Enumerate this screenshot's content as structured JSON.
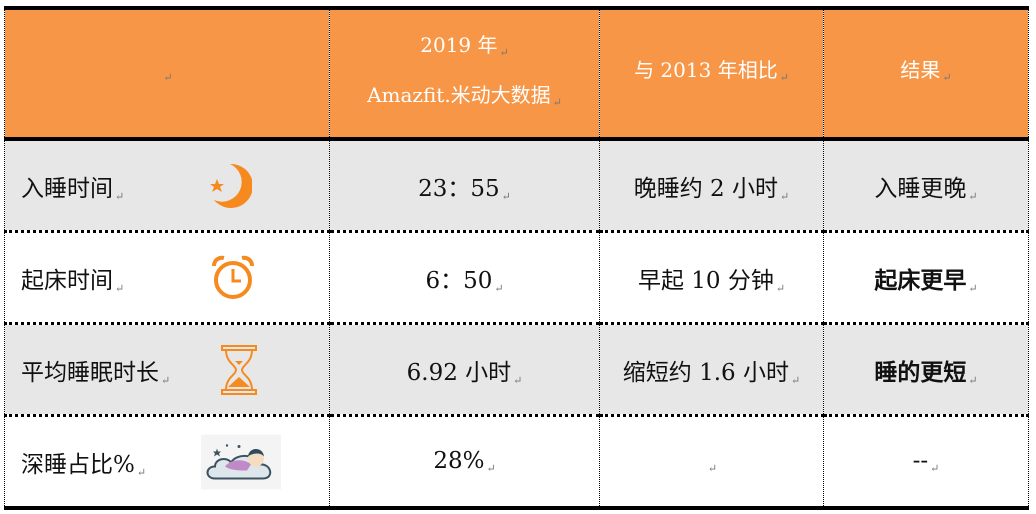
{
  "para_mark": "↵",
  "header": {
    "col0": "",
    "col1_line1": "2019 年",
    "col1_line2": "Amazfit.米动大数据",
    "col2": "与 2013 年相比",
    "col3": "结果"
  },
  "rows": [
    {
      "label": "入睡时间",
      "icon": "moon-star-icon",
      "value": "23：55",
      "compare": "晚睡约 2 小时",
      "result": "入睡更晚",
      "bold": false
    },
    {
      "label": "起床时间",
      "icon": "alarm-clock-icon",
      "value": "6：50",
      "compare": "早起 10 分钟",
      "result": "起床更早",
      "bold": true
    },
    {
      "label": "平均睡眠时长",
      "icon": "hourglass-icon",
      "value": "6.92 小时",
      "compare": "缩短约 1.6 小时",
      "result": "睡的更短",
      "bold": true
    },
    {
      "label": "深睡占比%",
      "icon": "sleeping-child-cloud-icon",
      "value": "28%",
      "compare": "",
      "result": "--",
      "bold": false
    }
  ],
  "colors": {
    "header": "#f79646",
    "icon": "#f68a1e",
    "gray_row": "#e7e7e7"
  }
}
